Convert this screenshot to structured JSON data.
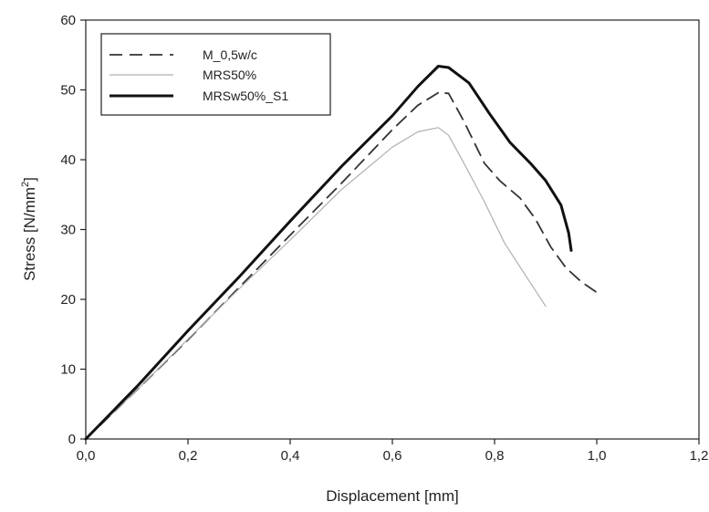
{
  "chart_data": {
    "type": "line",
    "title": "",
    "xlabel": "Displacement [mm]",
    "ylabel": {
      "main": "Stress [N/mm",
      "sup": "2",
      "end": "]"
    },
    "xlim": [
      0,
      1.2
    ],
    "ylim": [
      0,
      60
    ],
    "x_ticks": [
      0,
      0.2,
      0.4,
      0.6,
      0.8,
      1.0,
      1.2
    ],
    "x_tick_labels": [
      "0,0",
      "0,2",
      "0,4",
      "0,6",
      "0,8",
      "1,0",
      "1,2"
    ],
    "y_ticks": [
      0,
      10,
      20,
      30,
      40,
      50,
      60
    ],
    "y_tick_labels": [
      "0",
      "10",
      "20",
      "30",
      "40",
      "50",
      "60"
    ],
    "grid": false,
    "legend_position": "top-left",
    "series": [
      {
        "name": "M_0,5w/c",
        "style": "dashed",
        "color": "#333333",
        "x": [
          0,
          0.1,
          0.2,
          0.3,
          0.4,
          0.5,
          0.6,
          0.65,
          0.69,
          0.71,
          0.74,
          0.78,
          0.81,
          0.85,
          0.88,
          0.91,
          0.94,
          0.97,
          1.0
        ],
        "y": [
          0,
          7,
          14.2,
          21.7,
          29.2,
          36.6,
          44.3,
          47.8,
          49.6,
          49.5,
          45.5,
          39.5,
          37,
          34.5,
          31.5,
          27.5,
          24.5,
          22.5,
          21
        ]
      },
      {
        "name": "MRS50%",
        "style": "solid-thin",
        "color": "#b0b0b0",
        "x": [
          0,
          0.1,
          0.2,
          0.3,
          0.4,
          0.5,
          0.6,
          0.65,
          0.69,
          0.71,
          0.74,
          0.78,
          0.82,
          0.86,
          0.9
        ],
        "y": [
          0,
          7,
          14.3,
          21.5,
          28.5,
          35.7,
          41.8,
          44,
          44.6,
          43.5,
          39.5,
          34,
          28,
          23.5,
          19
        ]
      },
      {
        "name": "MRSw50%_S1",
        "style": "solid-thick",
        "color": "#111111",
        "x": [
          0,
          0.1,
          0.2,
          0.3,
          0.4,
          0.5,
          0.6,
          0.65,
          0.69,
          0.71,
          0.75,
          0.79,
          0.83,
          0.87,
          0.9,
          0.93,
          0.945,
          0.95
        ],
        "y": [
          0,
          7.5,
          15.5,
          23.2,
          31.2,
          39,
          46.3,
          50.5,
          53.4,
          53.2,
          51,
          46.6,
          42.5,
          39.5,
          37,
          33.5,
          29.5,
          27
        ]
      }
    ]
  }
}
